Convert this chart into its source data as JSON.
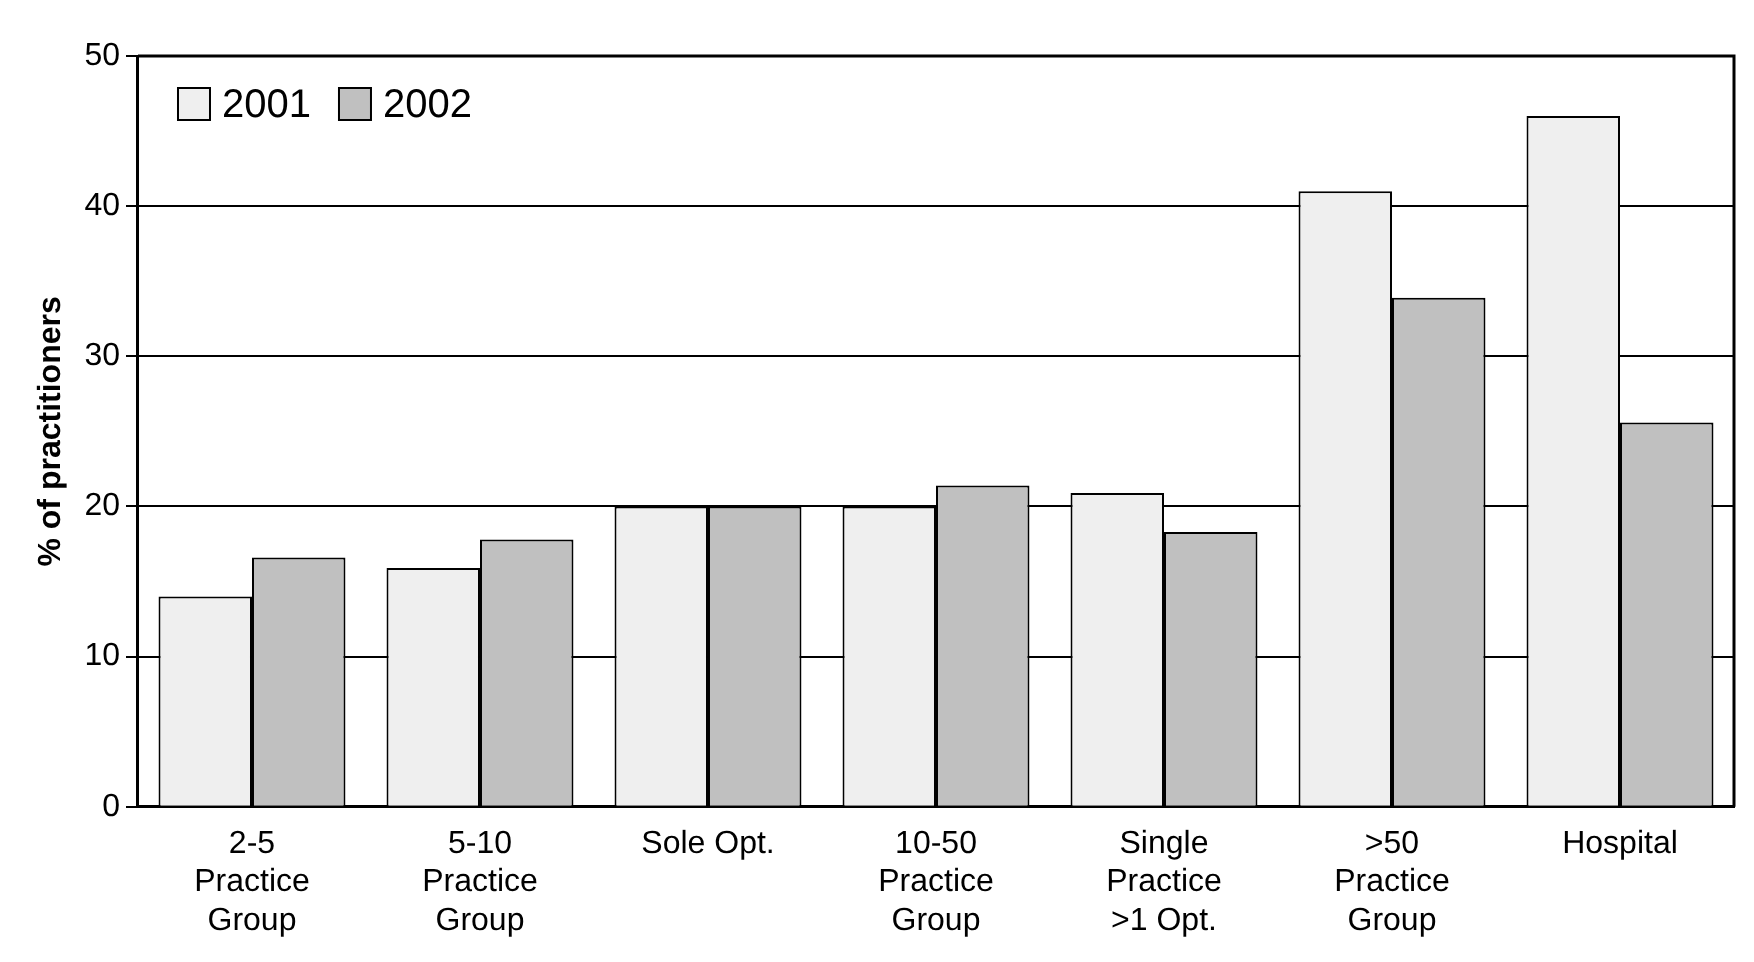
{
  "chart_data": {
    "type": "bar",
    "ylabel": "% of practitioners",
    "categories": [
      "2-5\nPractice\nGroup",
      "5-10\nPractice\nGroup",
      "Sole Opt.",
      "10-50\nPractice\nGroup",
      "Single\nPractice\n>1 Opt.",
      ">50\nPractice\nGroup",
      "Hospital"
    ],
    "series": [
      {
        "name": "2001",
        "color": "#efefef",
        "values": [
          14,
          15.9,
          20,
          20,
          20.9,
          41,
          46
        ]
      },
      {
        "name": "2002",
        "color": "#c0c0c0",
        "values": [
          16.6,
          17.8,
          20,
          21.4,
          18.3,
          33.9,
          25.6
        ]
      }
    ],
    "ylim": [
      0,
      50
    ],
    "yticks": [
      0,
      10,
      20,
      30,
      40,
      50
    ],
    "grid": "y",
    "legend": "top left"
  }
}
